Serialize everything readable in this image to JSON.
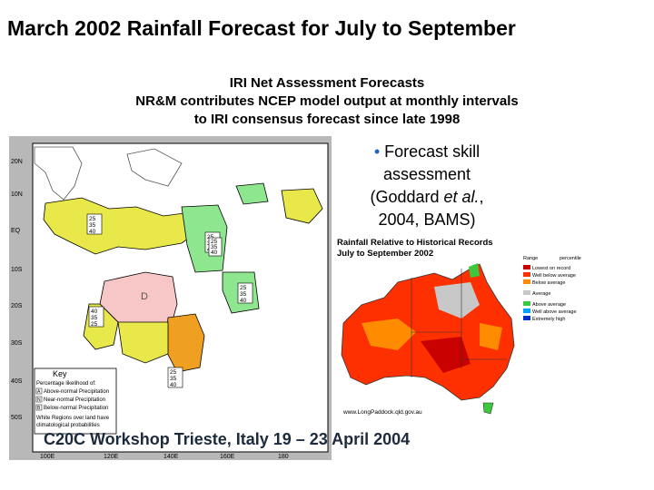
{
  "slide": {
    "title": "March 2002 Rainfall Forecast for July to September",
    "subtitle_lines": [
      "IRI Net Assessment Forecasts",
      "NR&M contributes NCEP model output at monthly intervals",
      "to IRI consensus forecast since late 1998"
    ],
    "bullet": {
      "symbol": "•",
      "line1": "Forecast skill",
      "line2": "assessment",
      "line3_pre": "(Goddard ",
      "line3_italic": "et al.",
      "line3_post": ",",
      "line4": "2004, BAMS)"
    },
    "footer": "C20C Workshop Trieste, Italy 19 – 23 April 2004"
  },
  "iri_map": {
    "lat_labels": [
      "20N",
      "10N",
      "EQ",
      "10S",
      "20S",
      "30S",
      "40S",
      "50S"
    ],
    "lon_labels": [
      "100E",
      "120E",
      "140E",
      "160E",
      "180"
    ],
    "region_label": "D",
    "key": {
      "title": "Key",
      "heading": "Percentage likelihood of:",
      "rows": [
        {
          "letter": "A",
          "text": "Above-normal Precipitation"
        },
        {
          "letter": "N",
          "text": "Near-normal Precipitation"
        },
        {
          "letter": "B",
          "text": "Below-normal Precipitation"
        }
      ],
      "note_lines": [
        "White Regions over land have",
        "climatological probabilities"
      ]
    },
    "box_values": [
      [
        "25",
        "35",
        "40"
      ],
      [
        "25",
        "35",
        "40"
      ],
      [
        "40",
        "35",
        "25"
      ],
      [
        "25",
        "35",
        "40"
      ],
      [
        "25",
        "35",
        "40"
      ],
      [
        "25",
        "35",
        "40"
      ]
    ],
    "colors": {
      "ocean": "#ffffff",
      "above_normal": "#e8e84a",
      "below_normal": "#8ee68e",
      "dry_region": "#f7c6c6",
      "orange": "#f0a020",
      "border": "#000000"
    }
  },
  "rainfall_map": {
    "title_lines": [
      "Rainfall Relative to Historical Records",
      "July to September 2002"
    ],
    "legend_heading": "Range",
    "legend_heading_right": "percentile",
    "legend": [
      {
        "label": "Lowest on record",
        "color": "#c80000"
      },
      {
        "label": "Well below average",
        "color": "#ff3000"
      },
      {
        "label": "Below average",
        "color": "#ff8c00"
      },
      {
        "label": "Average",
        "color": "#c8c8c8"
      },
      {
        "label": "Above average",
        "color": "#3cc83c"
      },
      {
        "label": "Well above average",
        "color": "#00a0ff"
      },
      {
        "label": "Extremely high",
        "color": "#0030c8"
      }
    ],
    "url": "www.LongPaddock.qld.gov.au"
  }
}
